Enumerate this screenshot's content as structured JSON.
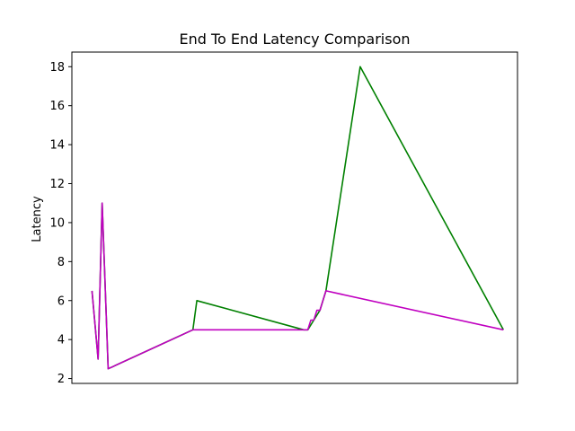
{
  "chart_data": {
    "type": "line",
    "title": "End To End Latency Comparison",
    "xlabel": "",
    "ylabel": "Latency",
    "xlim": [
      0,
      22.1
    ],
    "ylim": [
      1.75,
      18.75
    ],
    "yticks": [
      2,
      4,
      6,
      8,
      10,
      12,
      14,
      16,
      18
    ],
    "grid": false,
    "series": [
      {
        "color": "#008000",
        "x": [
          1.0,
          1.3,
          1.5,
          1.8,
          6.0,
          6.2,
          11.5,
          11.7,
          12.0,
          12.3,
          12.6,
          14.3,
          21.4
        ],
        "y": [
          6.5,
          3.0,
          11.0,
          2.5,
          4.5,
          6.0,
          4.5,
          4.5,
          5.0,
          5.5,
          6.5,
          18.0,
          4.5
        ]
      },
      {
        "color": "#c000c0",
        "x": [
          1.0,
          1.3,
          1.5,
          1.8,
          6.0,
          11.5,
          11.7,
          11.85,
          12.0,
          12.15,
          12.3,
          12.45,
          12.6,
          21.4
        ],
        "y": [
          6.5,
          3.0,
          11.0,
          2.5,
          4.5,
          4.5,
          4.5,
          5.0,
          5.0,
          5.5,
          5.5,
          6.0,
          6.5,
          4.5
        ]
      }
    ]
  }
}
